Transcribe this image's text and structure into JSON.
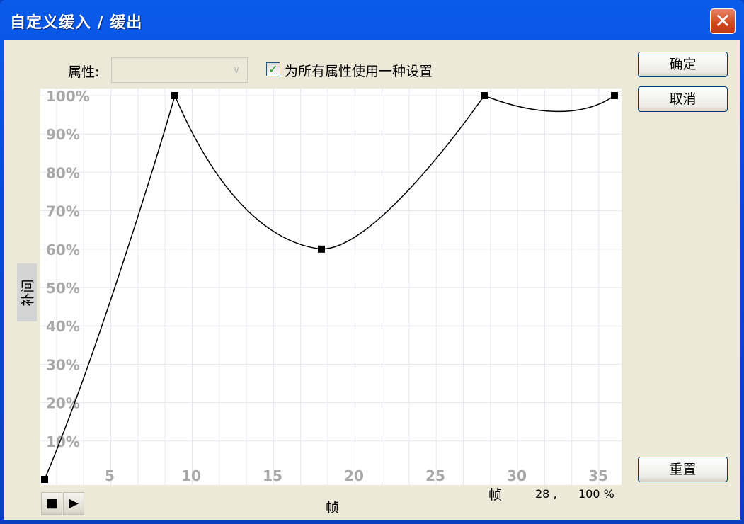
{
  "window": {
    "title": "自定义缓入 / 缓出",
    "close_icon": "close-icon"
  },
  "property": {
    "label": "属性:",
    "value": ""
  },
  "same_setting": {
    "label": "为所有属性使用一种设置",
    "checked": true
  },
  "buttons": {
    "ok": "确定",
    "cancel": "取消",
    "reset": "重置"
  },
  "axis": {
    "y_label": "补间",
    "x_label": "帧"
  },
  "status": {
    "frame_label": "帧",
    "frame": "28 ,",
    "percent": "100 %"
  },
  "playback": {
    "stop_icon": "stop-icon",
    "play_icon": "play-icon"
  },
  "chart_data": {
    "type": "line",
    "xlabel": "帧",
    "ylabel": "补间",
    "x_ticks": [
      5,
      10,
      15,
      20,
      25,
      30,
      35
    ],
    "y_ticks": [
      "10%",
      "20%",
      "30%",
      "40%",
      "50%",
      "60%",
      "70%",
      "80%",
      "90%",
      "100%"
    ],
    "xlim": [
      1,
      36
    ],
    "ylim": [
      0,
      100
    ],
    "grid": true,
    "keyframes": [
      {
        "x": 1,
        "y": 0
      },
      {
        "x": 9,
        "y": 100
      },
      {
        "x": 18,
        "y": 60
      },
      {
        "x": 28,
        "y": 100
      },
      {
        "x": 36,
        "y": 100
      }
    ],
    "curve_min_between_28_36": 96
  }
}
